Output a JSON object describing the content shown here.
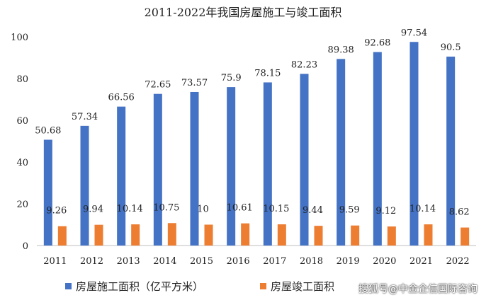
{
  "title": "2011-2022年我国房屋施工与竣工面积",
  "watermark": "搜狐号@中金企信国际咨询",
  "colors": {
    "series1": "#4472C4",
    "series2": "#ED7D31"
  },
  "chart_data": {
    "type": "bar",
    "title": "2011-2022年我国房屋施工与竣工面积",
    "categories": [
      "2011",
      "2012",
      "2013",
      "2014",
      "2015",
      "2016",
      "2017",
      "2018",
      "2019",
      "2020",
      "2021",
      "2022"
    ],
    "series": [
      {
        "name": "房屋施工面积（亿平方米）",
        "values": [
          50.68,
          57.34,
          66.56,
          72.65,
          73.57,
          75.9,
          78.15,
          82.23,
          89.38,
          92.68,
          97.54,
          90.5
        ],
        "labels": [
          "50.68",
          "57.34",
          "66.56",
          "72.65",
          "73.57",
          "75.9",
          "78.15",
          "82.23",
          "89.38",
          "92.68",
          "97.54",
          "90.5"
        ]
      },
      {
        "name": "房屋竣工面积",
        "values": [
          9.26,
          9.94,
          10.14,
          10.75,
          10,
          10.61,
          10.15,
          9.44,
          9.59,
          9.12,
          10.14,
          8.62
        ],
        "labels": [
          "9.26",
          "9.94",
          "10.14",
          "10.75",
          "10",
          "10.61",
          "10.15",
          "9.44",
          "9.59",
          "9.12",
          "10.14",
          "8.62"
        ]
      }
    ],
    "ylim": [
      0,
      100
    ],
    "yticks": [
      "0",
      "20",
      "40",
      "60",
      "80",
      "100"
    ],
    "xlabel": "",
    "ylabel": "",
    "grid": false,
    "legend": "bottom"
  }
}
